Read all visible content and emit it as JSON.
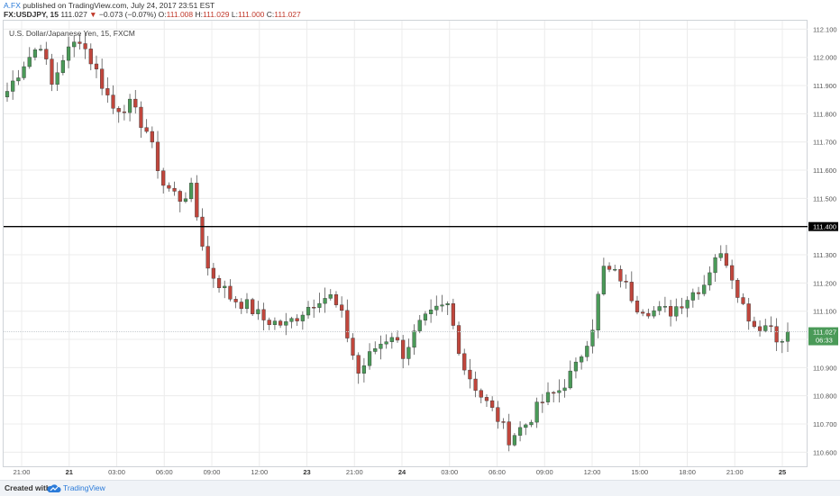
{
  "header": {
    "author": "A.FX",
    "published_text": "published on TradingView.com, July 24, 2017 23:51 EST",
    "symbol_line": "FX:USDJPY, 15",
    "last_price": "111.027",
    "change_arrow": "▼",
    "change": "−0.073 (−0.07%)",
    "ohlc": [
      {
        "key": "O:",
        "value": "111.008"
      },
      {
        "key": "H:",
        "value": "111.029"
      },
      {
        "key": "L:",
        "value": "111.000"
      },
      {
        "key": "C:",
        "value": "111.027"
      }
    ]
  },
  "chart": {
    "symbol_description": "U.S. Dollar/Japanese Yen, 15, FXCM",
    "price_tag": "111.027",
    "countdown_tag": "06:33",
    "level_tag": "111.400"
  },
  "footer": {
    "created_with": "Created with",
    "brand": "TradingView"
  },
  "colors": {
    "up": "#4a9a58",
    "down": "#c0463c",
    "grid": "#ececec",
    "level_line": "#000000",
    "accent": "#2b7bd9"
  },
  "chart_data": {
    "type": "candlestick",
    "title": "U.S. Dollar/Japanese Yen, 15, FXCM",
    "ylim": [
      110.55,
      112.13
    ],
    "yticks": [
      "112.100",
      "112.000",
      "111.900",
      "111.800",
      "111.700",
      "111.600",
      "111.500",
      "111.300",
      "111.200",
      "111.100",
      "111.000",
      "110.900",
      "110.800",
      "110.700",
      "110.600"
    ],
    "xticks": [
      "21:00",
      "21",
      "03:00",
      "06:00",
      "09:00",
      "12:00",
      "23",
      "21:00",
      "24",
      "03:00",
      "06:00",
      "09:00",
      "12:00",
      "15:00",
      "18:00",
      "21:00",
      "25"
    ],
    "xticks_bold": [
      false,
      true,
      false,
      false,
      false,
      false,
      true,
      false,
      true,
      false,
      false,
      false,
      false,
      false,
      false,
      false,
      true
    ],
    "horizontal_level": 111.4,
    "current_price": 111.027,
    "grid": true,
    "waypoints": [
      [
        0,
        111.88
      ],
      [
        3,
        111.98
      ],
      [
        6,
        112.05
      ],
      [
        8,
        111.9
      ],
      [
        10,
        112.0
      ],
      [
        13,
        112.07
      ],
      [
        16,
        111.95
      ],
      [
        19,
        111.82
      ],
      [
        22,
        111.83
      ],
      [
        25,
        111.74
      ],
      [
        28,
        111.55
      ],
      [
        31,
        111.5
      ],
      [
        33,
        111.53
      ],
      [
        36,
        111.25
      ],
      [
        40,
        111.15
      ],
      [
        43,
        111.12
      ],
      [
        46,
        111.07
      ],
      [
        50,
        111.05
      ],
      [
        53,
        111.1
      ],
      [
        56,
        111.15
      ],
      [
        58,
        111.15
      ],
      [
        60,
        111.08
      ],
      [
        63,
        110.88
      ],
      [
        66,
        110.97
      ],
      [
        69,
        111.02
      ],
      [
        71,
        110.95
      ],
      [
        74,
        111.05
      ],
      [
        77,
        111.1
      ],
      [
        79,
        111.12
      ],
      [
        82,
        110.9
      ],
      [
        85,
        110.8
      ],
      [
        88,
        110.72
      ],
      [
        90,
        110.65
      ],
      [
        93,
        110.7
      ],
      [
        96,
        110.78
      ],
      [
        99,
        110.82
      ],
      [
        102,
        110.9
      ],
      [
        105,
        111.05
      ],
      [
        107,
        111.25
      ],
      [
        110,
        111.22
      ],
      [
        113,
        111.12
      ],
      [
        116,
        111.1
      ],
      [
        119,
        111.1
      ],
      [
        122,
        111.15
      ],
      [
        125,
        111.2
      ],
      [
        127,
        111.3
      ],
      [
        129,
        111.28
      ],
      [
        132,
        111.12
      ],
      [
        134,
        111.05
      ],
      [
        137,
        111.05
      ],
      [
        139,
        110.98
      ],
      [
        140,
        111.03
      ]
    ]
  }
}
